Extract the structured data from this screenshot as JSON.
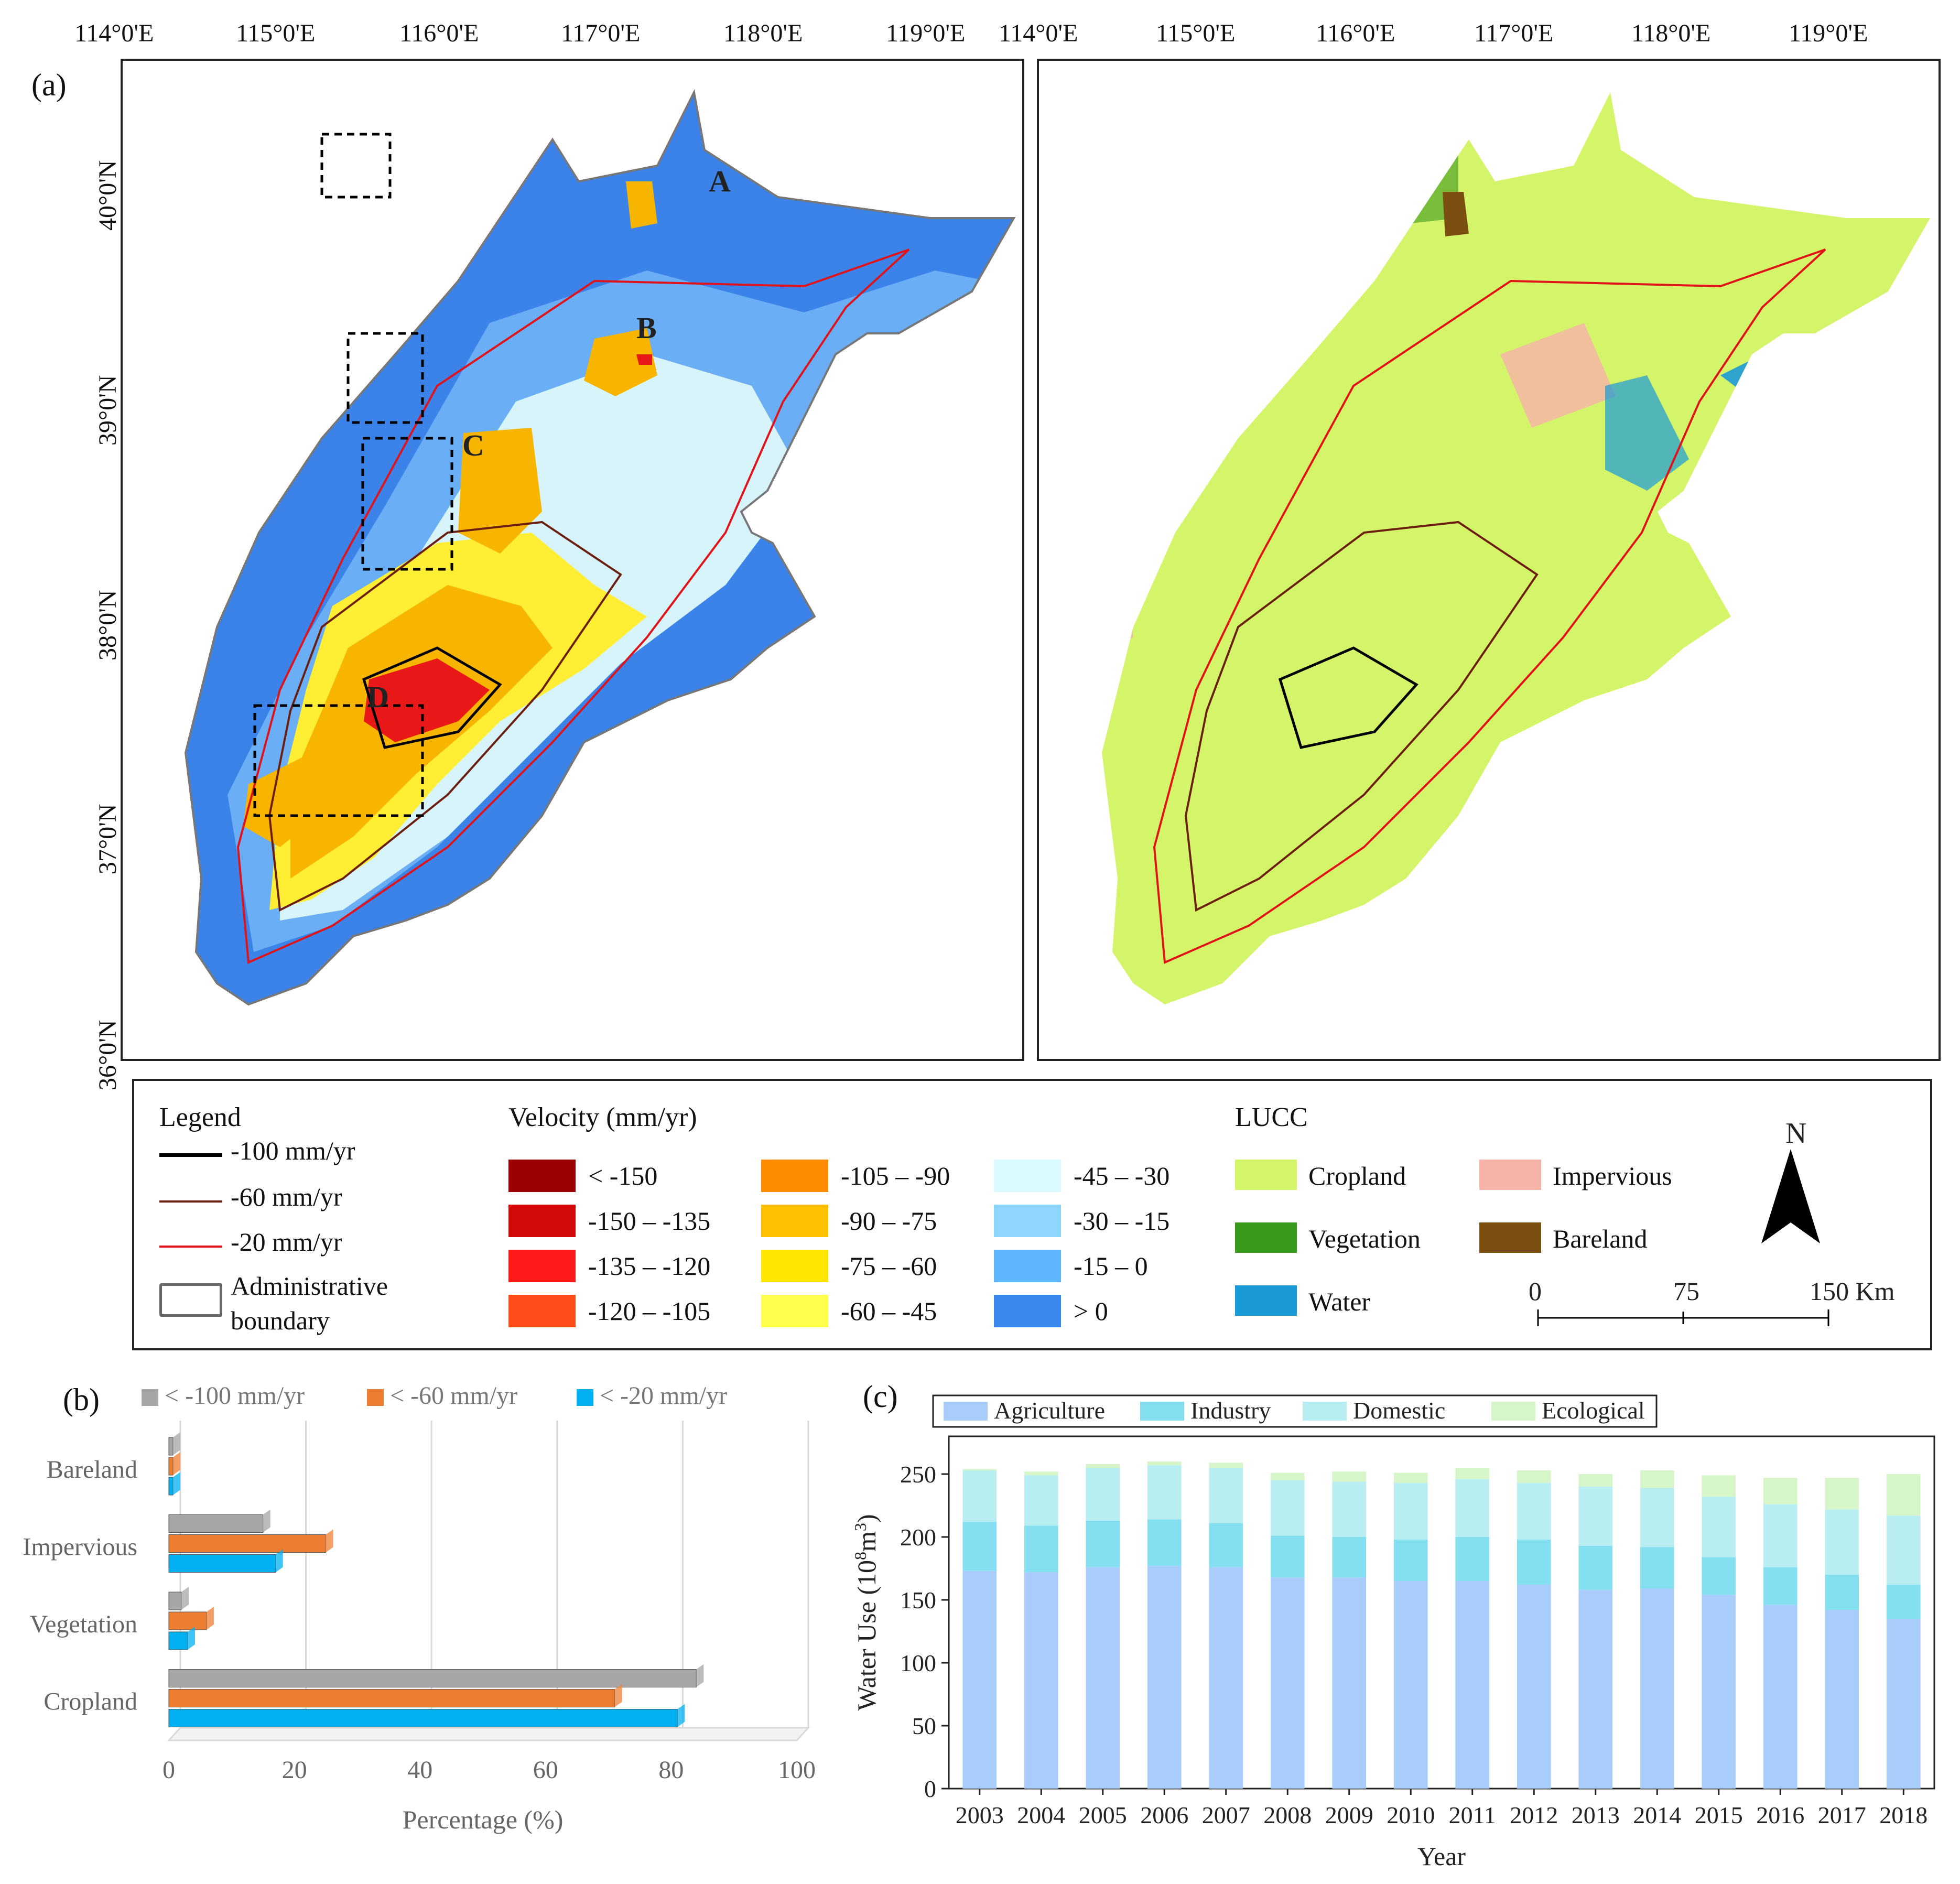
{
  "panel_labels": {
    "a": "(a)",
    "b": "(b)",
    "c": "(c)"
  },
  "map": {
    "lon_ticks_left": [
      "114°0'E",
      "115°0'E",
      "116°0'E",
      "117°0'E",
      "118°0'E",
      "119°0'E"
    ],
    "lon_ticks_right": [
      "114°0'E",
      "115°0'E",
      "116°0'E",
      "117°0'E",
      "118°0'E",
      "119°0'E"
    ],
    "lat_ticks": [
      "40°0'N",
      "39°0'N",
      "38°0'N",
      "37°0'N",
      "36°0'N"
    ],
    "zones": [
      "A",
      "B",
      "C",
      "D"
    ],
    "colors": {
      "deep_blue": "#3b83e8",
      "mid_blue": "#6aaef5",
      "light_blue": "#a8d8f8",
      "pale": "#d8f4fb",
      "yellow": "#ffee33",
      "orange": "#f7b500",
      "red": "#e81818",
      "cropland": "#d4f56a",
      "impervious": "#f5b3a8",
      "vegetation": "#3a9a1e",
      "water": "#1b9ad8",
      "bareland": "#7a4f10",
      "line_red": "#e0121a",
      "line_brown": "#6b1f10",
      "line_black": "#000000"
    }
  },
  "legend": {
    "title": "Legend",
    "contours": [
      {
        "label": "-100 mm/yr",
        "color": "#000000"
      },
      {
        "label": "-60 mm/yr",
        "color": "#6b1f10"
      },
      {
        "label": "-20 mm/yr",
        "color": "#e0121a"
      }
    ],
    "admin_label_1": "Administrative",
    "admin_label_2": "boundary",
    "velocity_title": "Velocity (mm/yr)",
    "velocity": [
      {
        "label": "< -150",
        "color": "#9b0000"
      },
      {
        "label": "-150 – -135",
        "color": "#d10a0a"
      },
      {
        "label": "-135 – -120",
        "color": "#ff1a1a"
      },
      {
        "label": "-120 – -105",
        "color": "#ff4d1a"
      },
      {
        "label": "-105 – -90",
        "color": "#ff8c00"
      },
      {
        "label": "-90 – -75",
        "color": "#ffc000"
      },
      {
        "label": "-75 – -60",
        "color": "#ffe600"
      },
      {
        "label": "-60 – -45",
        "color": "#ffff4d"
      },
      {
        "label": "-45 – -30",
        "color": "#d9fbff"
      },
      {
        "label": "-30 – -15",
        "color": "#8fd6ff"
      },
      {
        "label": "-15 – 0",
        "color": "#5fb6ff"
      },
      {
        "label": "> 0",
        "color": "#3a87ee"
      }
    ],
    "lucc_title": "LUCC",
    "lucc": [
      {
        "label": "Cropland",
        "color": "#d4f56a"
      },
      {
        "label": "Vegetation",
        "color": "#3a9a1e"
      },
      {
        "label": "Water",
        "color": "#1b9ad8"
      },
      {
        "label": "Impervious",
        "color": "#f5b3a8"
      },
      {
        "label": "Bareland",
        "color": "#7a4f10"
      }
    ],
    "north": "N",
    "scale": {
      "t0": "0",
      "t1": "75",
      "t2": "150 Km"
    }
  },
  "chart_data": [
    {
      "type": "bar",
      "orientation": "horizontal",
      "title": "",
      "categories": [
        "Bareland",
        "Impervious",
        "Vegetation",
        "Cropland"
      ],
      "series": [
        {
          "name": "< -100 mm/yr",
          "color": "#a6a6a6",
          "values": [
            0.5,
            15,
            2,
            84
          ]
        },
        {
          "name": "< -60 mm/yr",
          "color": "#ed7d31",
          "values": [
            0.5,
            25,
            6,
            71
          ]
        },
        {
          "name": "< -20 mm/yr",
          "color": "#00b0f0",
          "values": [
            0.5,
            17,
            3,
            81
          ]
        }
      ],
      "xlabel": "Percentage (%)",
      "xlim": [
        0,
        100
      ],
      "xticks": [
        "0",
        "20",
        "40",
        "60",
        "80",
        "100"
      ]
    },
    {
      "type": "bar",
      "stacked": true,
      "title": "",
      "categories": [
        "2003",
        "2004",
        "2005",
        "2006",
        "2007",
        "2008",
        "2009",
        "2010",
        "2011",
        "2012",
        "2013",
        "2014",
        "2015",
        "2016",
        "2017",
        "2018"
      ],
      "series": [
        {
          "name": "Agriculture",
          "color": "#a9cdfa",
          "values": [
            173,
            172,
            176,
            177,
            176,
            168,
            168,
            165,
            165,
            162,
            158,
            159,
            154,
            146,
            142,
            135
          ]
        },
        {
          "name": "Industry",
          "color": "#84dff0",
          "values": [
            39,
            37,
            37,
            37,
            35,
            33,
            32,
            33,
            35,
            36,
            35,
            33,
            30,
            30,
            28,
            27
          ]
        },
        {
          "name": "Domestic",
          "color": "#b8eef2",
          "values": [
            41,
            40,
            42,
            43,
            44,
            44,
            44,
            45,
            46,
            45,
            47,
            47,
            48,
            50,
            52,
            55
          ]
        },
        {
          "name": "Ecological",
          "color": "#d6f5c8",
          "values": [
            1,
            3,
            3,
            3,
            4,
            6,
            8,
            8,
            9,
            10,
            10,
            14,
            17,
            21,
            25,
            33
          ]
        }
      ],
      "ylabel": "Water Use (10⁸m³)",
      "ylabel_main": "Water Use (10",
      "ylabel_exp1": "8",
      "ylabel_mid": "m",
      "ylabel_exp2": "3",
      "ylabel_end": ")",
      "xlabel": "Year",
      "ylim": [
        0,
        280
      ],
      "yticks": [
        "0",
        "50",
        "100",
        "150",
        "200",
        "250"
      ]
    }
  ]
}
